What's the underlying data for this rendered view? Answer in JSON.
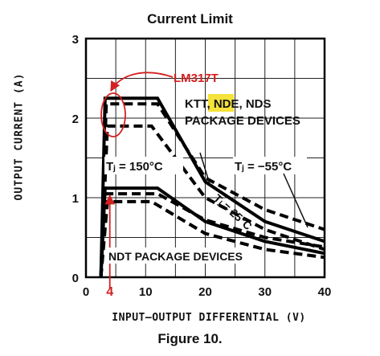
{
  "chart_data": {
    "type": "line",
    "title": "Current Limit",
    "caption": "Figure 10.",
    "xlabel": "INPUT–OUTPUT DIFFERENTIAL (V)",
    "ylabel": "OUTPUT CURRENT (A)",
    "xlim": [
      0,
      40
    ],
    "ylim": [
      0,
      3
    ],
    "xticks": [
      0,
      10,
      20,
      30,
      40
    ],
    "yticks": [
      0,
      1,
      2,
      3
    ],
    "grid": true,
    "marker_x": 4,
    "marker_x_label": "4",
    "annotations": {
      "lm317t": "LM317T",
      "pkg_line1_a": "KTT, ",
      "pkg_line1_b": "NDE",
      "pkg_line1_c": ", NDS",
      "pkg_line2": "PACKAGE DEVICES",
      "ndt": "NDT PACKAGE DEVICES",
      "tj150": "Tⱼ = 150°C",
      "tj55": "Tⱼ = −55°C",
      "tj25": "Tⱼ = 25°C"
    },
    "colors": {
      "curve": "#000000",
      "highlight": "#f5e23a",
      "marker": "#d42020",
      "grid": "#222222"
    },
    "series": [
      {
        "group": "KTT/NDE/NDS",
        "style": "solid",
        "x": [
          2.5,
          3.2,
          12,
          20,
          30,
          40
        ],
        "y": [
          0,
          2.25,
          2.25,
          1.2,
          0.7,
          0.45
        ]
      },
      {
        "group": "KTT/NDE/NDS",
        "style": "dashed",
        "x": [
          2.5,
          3.4,
          12,
          20,
          30,
          40
        ],
        "y": [
          0,
          2.18,
          2.18,
          1.25,
          0.85,
          0.6
        ]
      },
      {
        "group": "KTT/NDE/NDS",
        "style": "dashed",
        "x": [
          2.5,
          3.6,
          11,
          20,
          30,
          40
        ],
        "y": [
          0,
          1.9,
          1.9,
          1.0,
          0.6,
          0.35
        ]
      },
      {
        "group": "NDT",
        "style": "solid",
        "x": [
          2.5,
          3.2,
          12,
          20,
          30,
          40
        ],
        "y": [
          0,
          1.12,
          1.12,
          0.7,
          0.45,
          0.3
        ]
      },
      {
        "group": "NDT",
        "style": "dashed",
        "x": [
          2.5,
          3.4,
          12,
          20,
          30,
          40
        ],
        "y": [
          0,
          1.05,
          1.05,
          0.72,
          0.5,
          0.38
        ]
      },
      {
        "group": "NDT",
        "style": "dashed",
        "x": [
          2.5,
          3.6,
          11,
          20,
          30,
          40
        ],
        "y": [
          0,
          0.95,
          0.95,
          0.55,
          0.35,
          0.25
        ]
      }
    ]
  }
}
